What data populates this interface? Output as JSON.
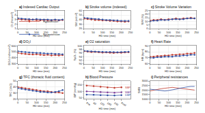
{
  "chart_data": [
    {
      "type": "scatter",
      "label": "a)",
      "title": "Indexed Cardiac Output",
      "x_label": "HD time (min)",
      "y_label": "CI (l/min/m²)",
      "x": [
        0,
        20,
        40,
        60,
        80,
        100,
        120,
        140,
        160,
        180,
        200,
        220,
        240
      ],
      "xlim": [
        0,
        250
      ],
      "xticks": [
        0,
        50,
        100,
        150,
        200,
        250
      ],
      "ylim": [
        1,
        5
      ],
      "yticks": [
        1,
        2,
        3,
        4,
        5
      ],
      "grid": true,
      "legend": "upper right",
      "marker": "circle",
      "series": [
        {
          "name": "Hypotension",
          "color": "#c0392b",
          "values": [
            3.1,
            3.0,
            3.0,
            2.9,
            3.0,
            2.9,
            2.8,
            2.9,
            2.8,
            2.8,
            2.9,
            2.8,
            2.9
          ]
        },
        {
          "name": "Normotension",
          "color": "#2e4fa3",
          "values": [
            3.3,
            3.2,
            3.1,
            3.1,
            3.0,
            3.1,
            3.0,
            3.0,
            3.0,
            2.9,
            3.0,
            2.9,
            3.0
          ]
        }
      ]
    },
    {
      "type": "scatter",
      "label": "b)",
      "title": "Stroke volume (indexed)",
      "x_label": "HD time (min)",
      "y_label": "SVI (ml/m²)",
      "x": [
        0,
        20,
        40,
        60,
        80,
        100,
        120,
        140,
        160,
        180,
        200,
        220,
        240
      ],
      "xlim": [
        0,
        250
      ],
      "xticks": [
        0,
        50,
        100,
        150,
        200,
        250
      ],
      "ylim": [
        20,
        60
      ],
      "yticks": [
        20,
        30,
        40,
        50,
        60
      ],
      "grid": true,
      "marker": "circle",
      "series": [
        {
          "name": "Hypotension",
          "color": "#c0392b",
          "values": [
            42,
            41,
            40,
            39,
            39,
            38,
            38,
            37,
            37,
            36,
            36,
            35,
            36
          ]
        },
        {
          "name": "Normotension",
          "color": "#2e4fa3",
          "values": [
            44,
            43,
            42,
            41,
            41,
            40,
            39,
            39,
            38,
            38,
            37,
            37,
            37
          ]
        }
      ]
    },
    {
      "type": "scatter",
      "label": "c)",
      "title": "Stroke Volume Variation",
      "x_label": "HD time (min)",
      "y_label": "SVV (%)",
      "x": [
        0,
        20,
        40,
        60,
        80,
        100,
        120,
        140,
        160,
        180,
        200,
        220,
        240
      ],
      "xlim": [
        0,
        250
      ],
      "xticks": [
        0,
        50,
        100,
        150,
        200,
        250
      ],
      "ylim": [
        0,
        25
      ],
      "yticks": [
        0,
        5,
        10,
        15,
        20,
        25
      ],
      "grid": true,
      "marker": "circle",
      "series": [
        {
          "name": "Hypotension",
          "color": "#c0392b",
          "values": [
            11,
            12,
            12,
            13,
            12,
            13,
            13,
            14,
            13,
            14,
            14,
            15,
            14
          ]
        },
        {
          "name": "Normotension",
          "color": "#2e4fa3",
          "values": [
            10,
            11,
            11,
            12,
            12,
            12,
            13,
            13,
            13,
            13,
            14,
            14,
            14
          ]
        }
      ]
    },
    {
      "type": "scatter",
      "label": "d)",
      "title": "DO₂I",
      "x_label": "HD time (min)",
      "y_label": "DO₂I (ml/min/m²)",
      "x": [
        0,
        20,
        40,
        60,
        80,
        100,
        120,
        140,
        160,
        180,
        200,
        220,
        240
      ],
      "xlim": [
        0,
        250
      ],
      "xticks": [
        0,
        50,
        100,
        150,
        200,
        250
      ],
      "ylim": [
        300,
        600
      ],
      "yticks": [
        300,
        400,
        500,
        600
      ],
      "grid": true,
      "marker": "circle",
      "series": [
        {
          "name": "Hypotension",
          "color": "#c0392b",
          "values": [
            480,
            470,
            465,
            460,
            455,
            460,
            450,
            445,
            450,
            440,
            445,
            440,
            445
          ]
        },
        {
          "name": "Normotension",
          "color": "#2e4fa3",
          "values": [
            510,
            500,
            495,
            490,
            485,
            480,
            480,
            475,
            470,
            470,
            465,
            465,
            460
          ]
        }
      ]
    },
    {
      "type": "scatter",
      "label": "e)",
      "title": "O2 saturation",
      "x_label": "HD time (min)",
      "y_label": "SpO₂ (%)",
      "x": [
        0,
        20,
        40,
        60,
        80,
        100,
        120,
        140,
        160,
        180,
        200,
        220,
        240
      ],
      "xlim": [
        0,
        250
      ],
      "xticks": [
        0,
        50,
        100,
        150,
        200,
        250
      ],
      "ylim": [
        90,
        100
      ],
      "yticks": [
        90,
        92,
        94,
        96,
        98,
        100
      ],
      "grid": true,
      "marker": "circle",
      "series": [
        {
          "name": "Hypotension",
          "color": "#c0392b",
          "values": [
            97,
            96.8,
            96.5,
            96.6,
            96.4,
            96.2,
            96.3,
            96.1,
            96.0,
            96.2,
            96.1,
            96.3,
            96.4
          ]
        },
        {
          "name": "Normotension",
          "color": "#2e4fa3",
          "values": [
            97.2,
            97.0,
            96.9,
            96.8,
            96.7,
            96.6,
            96.5,
            96.6,
            96.5,
            96.4,
            96.5,
            96.6,
            96.7
          ]
        }
      ]
    },
    {
      "type": "scatter",
      "label": "f)",
      "title": "Heart Rate",
      "x_label": "HD time (min)",
      "y_label": "HR (bpm)",
      "x": [
        0,
        20,
        40,
        60,
        80,
        100,
        120,
        140,
        160,
        180,
        200,
        220,
        240
      ],
      "xlim": [
        0,
        250
      ],
      "xticks": [
        0,
        50,
        100,
        150,
        200,
        250
      ],
      "ylim": [
        60,
        90
      ],
      "yticks": [
        60,
        70,
        80,
        90
      ],
      "grid": true,
      "marker": "circle",
      "series": [
        {
          "name": "Hypotension",
          "color": "#c0392b",
          "values": [
            72,
            72,
            73,
            73,
            74,
            74,
            75,
            75,
            76,
            76,
            77,
            77,
            78
          ]
        },
        {
          "name": "Normotension",
          "color": "#2e4fa3",
          "values": [
            70,
            70,
            71,
            71,
            72,
            72,
            72,
            73,
            73,
            74,
            74,
            75,
            75
          ]
        }
      ]
    },
    {
      "type": "scatter",
      "label": "g)",
      "title": "TFC (thoracic fluid content)",
      "x_label": "HD time (min)",
      "y_label": "TFC (1/kΩ)",
      "x": [
        0,
        20,
        40,
        60,
        80,
        100,
        120,
        140,
        160,
        180,
        200,
        220,
        240
      ],
      "xlim": [
        0,
        250
      ],
      "xticks": [
        0,
        50,
        100,
        150,
        200,
        250
      ],
      "ylim": [
        20,
        50
      ],
      "yticks": [
        20,
        30,
        40,
        50
      ],
      "grid": true,
      "marker": "circle",
      "series": [
        {
          "name": "Hypotension",
          "color": "#c0392b",
          "values": [
            40,
            39,
            38,
            37,
            36,
            35,
            34,
            33,
            33,
            32,
            31,
            31,
            30
          ]
        },
        {
          "name": "Normotension",
          "color": "#2e4fa3",
          "values": [
            38,
            37,
            36,
            35,
            34,
            33,
            32,
            32,
            31,
            31,
            32,
            33,
            35
          ]
        }
      ]
    },
    {
      "type": "line",
      "label": "h)",
      "title": "Blood Pressure",
      "x_label": "HD time (min)",
      "y_label": "BP (mmHg)",
      "categories": [
        "Pre",
        "60",
        "120",
        "180",
        "240",
        "Post"
      ],
      "ylim": [
        40,
        180
      ],
      "yticks": [
        50,
        100,
        150
      ],
      "grid": true,
      "marker": "circle",
      "series": [
        {
          "name": "SBP",
          "color": "#c0392b",
          "values": [
            145,
            140,
            135,
            130,
            128,
            132
          ]
        },
        {
          "name": "MAP",
          "color": "#7d3c98",
          "values": [
            100,
            97,
            94,
            92,
            90,
            93
          ]
        },
        {
          "name": "DBP",
          "color": "#2e4fa3",
          "values": [
            75,
            73,
            71,
            70,
            68,
            71
          ]
        }
      ]
    },
    {
      "type": "line",
      "label": "i)",
      "title": "Peripheral resistances",
      "x_label": "HD time (min)",
      "y_label": "SVRI",
      "x": [
        0,
        20,
        40,
        60,
        80,
        100,
        120,
        140,
        160,
        180,
        200,
        220,
        240
      ],
      "xlim": [
        0,
        250
      ],
      "xticks": [
        0,
        50,
        100,
        150,
        200,
        250
      ],
      "ylim": [
        1000,
        3000
      ],
      "yticks": [
        1000,
        1500,
        2000,
        2500,
        3000
      ],
      "grid": true,
      "series": [
        {
          "name": "Hypotension",
          "color": "#c0392b",
          "values": [
            1900,
            2000,
            2100,
            2150,
            2200,
            2250,
            2300,
            2250,
            2200,
            2150,
            2100,
            2050,
            2000
          ]
        },
        {
          "name": "Normotension",
          "color": "#2e4fa3",
          "values": [
            2100,
            2050,
            2000,
            1950,
            1900,
            1950,
            2000,
            2100,
            2200,
            2300,
            2350,
            2400,
            2400
          ]
        }
      ]
    }
  ]
}
